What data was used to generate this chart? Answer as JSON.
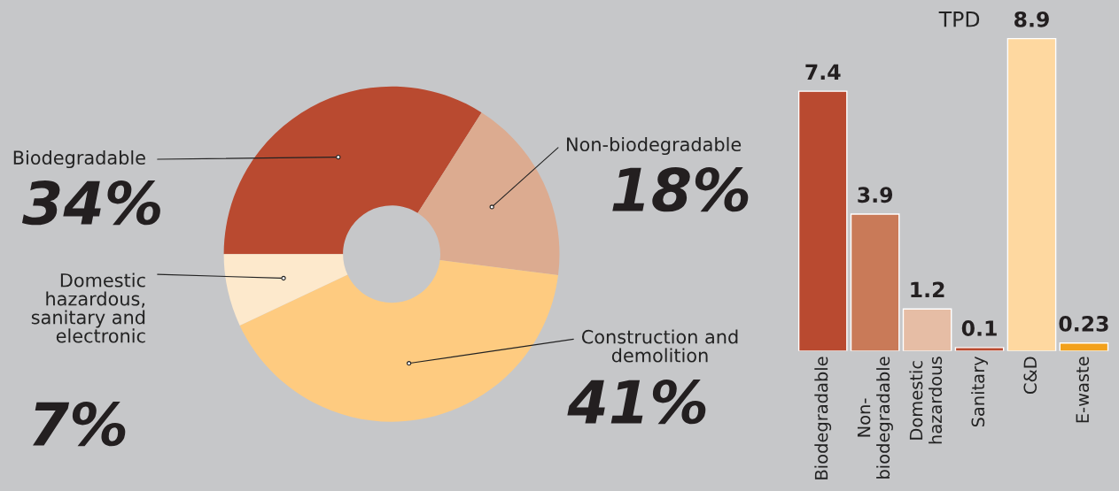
{
  "chart_data": [
    {
      "type": "donut",
      "categories": [
        "Biodegradable",
        "Non-biodegradable",
        "Construction and\ndemolition",
        "Domestic\nhazardous,\nsanitary and\nelectronic"
      ],
      "values": [
        34,
        18,
        41,
        7
      ],
      "value_labels": [
        "34%",
        "18%",
        "41%",
        "7%"
      ],
      "colors": [
        "#b94a30",
        "#dcab90",
        "#fecb80",
        "#fde9cc"
      ]
    },
    {
      "type": "bar",
      "ylabel": "TPD",
      "categories": [
        "Biodegradable",
        "Non-\nbiodegradable",
        "Domestic\nhazardous",
        "Sanitary",
        "C&D",
        "E-waste"
      ],
      "values": [
        7.4,
        3.9,
        1.2,
        0.1,
        8.9,
        0.23
      ],
      "colors": [
        "#b94a30",
        "#c97a58",
        "#e6bda5",
        "#b94a30",
        "#fed8a0",
        "#f2a11c"
      ],
      "ylim": [
        0,
        10
      ],
      "data_labels": true
    }
  ]
}
